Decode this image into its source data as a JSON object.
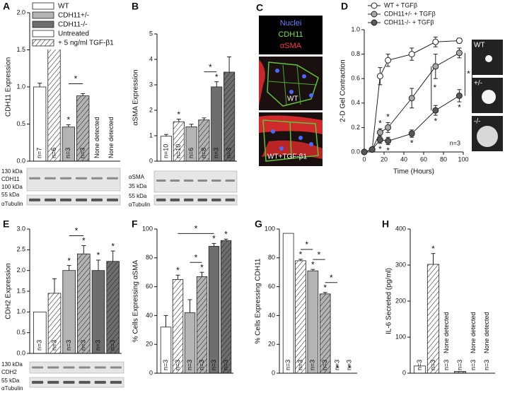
{
  "legend": {
    "items": [
      {
        "label": "WT",
        "fill": "#ffffff",
        "hatched": false
      },
      {
        "label": "CDH11+/-",
        "fill": "#b4b4b4",
        "hatched": false
      },
      {
        "label": "CDH11-/-",
        "fill": "#6e6e6e",
        "hatched": false
      },
      {
        "label": "Untreated",
        "fill": "#ffffff",
        "hatched": false
      },
      {
        "label": "+ 5 ng/ml TGF-β1",
        "fill": "#ffffff",
        "hatched": true
      }
    ]
  },
  "panel_c": {
    "panel": "C",
    "stains": [
      {
        "label": "Nuclei",
        "color": "#6b7dff"
      },
      {
        "label": "CDH11",
        "color": "#7be04f"
      },
      {
        "label": "αSMA",
        "color": "#ff3b3b"
      }
    ],
    "conditions": [
      "WT",
      "WT+TGF-β1"
    ]
  },
  "blots": [
    {
      "labels": [
        "130 kDa",
        "CDH11",
        "100 kDa",
        "55 kDa",
        "αTubulin"
      ]
    },
    {
      "labels": [
        "αSMA",
        "35 kDa",
        "55 kDa",
        "αTubulin"
      ]
    },
    {
      "labels": [
        "130 kDa",
        "CDH2",
        "55 kDa",
        "αTubulin"
      ]
    }
  ],
  "chart_data": [
    {
      "type": "bar",
      "panel": "A",
      "ylabel": "CDH11 Expression",
      "ylim": [
        0,
        2
      ],
      "yticks": [
        {
          "value": 0,
          "label": "0.0"
        },
        {
          "value": 0.5,
          "label": "0.5"
        },
        {
          "value": 1,
          "label": "1.0"
        },
        {
          "value": 1.5,
          "label": "1.5"
        },
        {
          "value": 2,
          "label": "2.0"
        }
      ],
      "values": [
        1.0,
        1.62,
        0.46,
        0.88,
        null,
        null
      ],
      "errors": [
        0.05,
        0.05,
        0.03,
        0.03,
        null,
        null
      ],
      "value_labels": [
        null,
        null,
        null,
        null,
        "None detected",
        "None detected"
      ],
      "n_labels": [
        "n=7",
        "n=6",
        "n=3",
        "n=3",
        null,
        null
      ],
      "fills": [
        "#ffffff",
        "#ffffff",
        "#b4b4b4",
        "#b4b4b4",
        null,
        null
      ],
      "hatched": [
        false,
        true,
        false,
        true,
        null,
        null
      ],
      "starred": [
        false,
        true,
        true,
        false,
        false,
        false
      ],
      "star": "*",
      "brackets": [
        [
          2,
          3
        ]
      ]
    },
    {
      "type": "bar",
      "panel": "B",
      "ylabel": "αSMA Expression",
      "ylim": [
        0,
        5
      ],
      "yticks": [
        0,
        1,
        2,
        3,
        4,
        5
      ],
      "values": [
        0.98,
        1.55,
        1.35,
        1.62,
        2.92,
        3.5
      ],
      "errors": [
        0.07,
        0.1,
        0.1,
        0.08,
        0.2,
        0.6
      ],
      "value_labels": [
        null,
        null,
        null,
        null,
        null,
        null
      ],
      "n_labels": [
        "n=10",
        "n=10",
        "n=6",
        "n=8",
        "n=3",
        "n=3"
      ],
      "fills": [
        "#ffffff",
        "#ffffff",
        "#b4b4b4",
        "#b4b4b4",
        "#6e6e6e",
        "#6e6e6e"
      ],
      "hatched": [
        false,
        true,
        false,
        true,
        false,
        true
      ],
      "starred": [
        false,
        true,
        false,
        false,
        true,
        false
      ],
      "star": "*",
      "brackets": [
        [
          3,
          4
        ]
      ]
    },
    {
      "type": "line",
      "panel": "D",
      "ylabel": "2-D Gel Contraction",
      "xlabel": "Time (Hours)",
      "xlim": [
        0,
        100
      ],
      "xticks": [
        0,
        20,
        40,
        60,
        80,
        100
      ],
      "ylim": [
        0,
        1
      ],
      "yticks": [
        {
          "value": 0,
          "label": "0.0"
        },
        {
          "value": 0.2,
          "label": "0.2"
        },
        {
          "value": 0.4,
          "label": "0.4"
        },
        {
          "value": 0.6,
          "label": "0.6"
        },
        {
          "value": 0.8,
          "label": "0.8"
        },
        {
          "value": 1,
          "label": "1.0"
        }
      ],
      "x": [
        0,
        8,
        16,
        24,
        48,
        72,
        96
      ],
      "series": [
        {
          "name": "WT + TGFβ",
          "color": "#ffffff",
          "values": [
            0,
            0.02,
            0.62,
            0.75,
            0.8,
            0.9,
            0.91
          ],
          "errors": [
            0,
            0,
            0.07,
            0.05,
            0.05,
            0.04,
            0.02
          ],
          "starred": [
            false,
            false,
            false,
            false,
            false,
            false,
            false
          ]
        },
        {
          "name": "CDH11+/- + TGFβ",
          "color": "#a8a8a8",
          "values": [
            0,
            0.02,
            0.16,
            0.2,
            0.44,
            0.7,
            0.81
          ],
          "errors": [
            0,
            0,
            0.03,
            0.04,
            0.08,
            0.1,
            0.04
          ],
          "starred": [
            false,
            false,
            true,
            true,
            false,
            false,
            false
          ]
        },
        {
          "name": "CDH11-/- + TGFβ",
          "color": "#5a5a5a",
          "values": [
            0,
            0.02,
            0.1,
            0.09,
            0.15,
            0.34,
            0.46
          ],
          "errors": [
            0,
            0,
            0.03,
            0.03,
            0.03,
            0.04,
            0.05
          ],
          "starred": [
            false,
            false,
            true,
            true,
            true,
            true,
            true
          ]
        }
      ],
      "star": "*",
      "brackets": [
        [
          1,
          2,
          5
        ],
        [
          1,
          2,
          6
        ],
        [
          0,
          2,
          6
        ]
      ],
      "annotation": "n=3",
      "gel_labels": [
        "WT",
        "+/-",
        "-/-"
      ]
    },
    {
      "type": "bar",
      "panel": "E",
      "ylabel": "CDH2 Expression",
      "ylim": [
        0,
        3
      ],
      "yticks": [
        {
          "value": 0,
          "label": "0.0"
        },
        {
          "value": 0.5,
          "label": "0.5"
        },
        {
          "value": 1,
          "label": "1.0"
        },
        {
          "value": 1.5,
          "label": "1.5"
        },
        {
          "value": 2,
          "label": "2.0"
        },
        {
          "value": 2.5,
          "label": "2.5"
        },
        {
          "value": 3,
          "label": "3.0"
        }
      ],
      "values": [
        1.0,
        1.45,
        2.0,
        2.4,
        2.0,
        2.22
      ],
      "errors": [
        null,
        0.35,
        0.12,
        0.2,
        0.25,
        0.25
      ],
      "value_labels": [
        null,
        null,
        null,
        null,
        null,
        null
      ],
      "n_labels": [
        "n=3",
        "n=3",
        "n=3",
        "n=3",
        "n=3",
        "n=3"
      ],
      "fills": [
        "#ffffff",
        "#ffffff",
        "#b4b4b4",
        "#b4b4b4",
        "#6e6e6e",
        "#6e6e6e"
      ],
      "hatched": [
        false,
        true,
        false,
        true,
        false,
        true
      ],
      "starred": [
        false,
        false,
        true,
        true,
        true,
        true
      ],
      "star": "*",
      "brackets": [
        [
          2,
          3
        ]
      ]
    },
    {
      "type": "bar",
      "panel": "F",
      "ylabel": "% Cells Expressing αSMA",
      "ylim": [
        0,
        100
      ],
      "yticks": [
        0,
        20,
        40,
        60,
        80,
        100
      ],
      "values": [
        32,
        65,
        42,
        67,
        88,
        92
      ],
      "errors": [
        8,
        3,
        9,
        3,
        2,
        1
      ],
      "value_labels": [
        null,
        null,
        null,
        null,
        null,
        null
      ],
      "n_labels": [
        "n=3",
        "n=3",
        "n=3",
        "n=3",
        "n=3",
        "n=3"
      ],
      "fills": [
        "#ffffff",
        "#ffffff",
        "#b4b4b4",
        "#b4b4b4",
        "#6e6e6e",
        "#6e6e6e"
      ],
      "hatched": [
        false,
        true,
        false,
        true,
        false,
        true
      ],
      "starred": [
        false,
        true,
        false,
        true,
        true,
        true
      ],
      "star": "*",
      "brackets": [
        [
          2,
          3
        ],
        [
          1,
          4
        ]
      ]
    },
    {
      "type": "bar",
      "panel": "G",
      "ylabel": "% Cells Expressing CDH11",
      "ylim": [
        0,
        100
      ],
      "yticks": [
        0,
        20,
        40,
        60,
        80,
        100
      ],
      "values": [
        97,
        78,
        71,
        55,
        0,
        0
      ],
      "errors": [
        null,
        1,
        1,
        1,
        null,
        null
      ],
      "value_labels": [
        null,
        null,
        null,
        null,
        null,
        null
      ],
      "n_labels": [
        "n=3",
        "n=3",
        "n=3",
        "n=3",
        "n=3",
        "n=3"
      ],
      "fills": [
        "#ffffff",
        "#ffffff",
        "#b4b4b4",
        "#b4b4b4",
        "#6e6e6e",
        "#6e6e6e"
      ],
      "hatched": [
        false,
        true,
        false,
        true,
        false,
        true
      ],
      "starred": [
        false,
        true,
        true,
        true,
        true,
        true
      ],
      "star": "*",
      "brackets": [
        [
          1,
          2
        ],
        [
          2,
          3
        ],
        [
          3,
          4
        ]
      ]
    },
    {
      "type": "bar",
      "panel": "H",
      "ylabel": "IL-6 Secreted (pg/ml)",
      "ylim": [
        0,
        400
      ],
      "yticks": [
        0,
        100,
        200,
        300,
        400
      ],
      "values": [
        20,
        302,
        null,
        5,
        null,
        null
      ],
      "errors": [
        null,
        30,
        null,
        null,
        null,
        null
      ],
      "value_labels": [
        null,
        null,
        "None detected",
        null,
        "None detected",
        "None detected"
      ],
      "n_labels": [
        "n=3",
        "n=3",
        "n=3",
        "n=3",
        "n=3",
        "n=3"
      ],
      "fills": [
        "#ffffff",
        "#ffffff",
        null,
        "#b4b4b4",
        null,
        null
      ],
      "hatched": [
        false,
        true,
        null,
        true,
        null,
        null
      ],
      "starred": [
        false,
        true,
        false,
        false,
        false,
        false
      ],
      "star": "*",
      "brackets": []
    }
  ]
}
